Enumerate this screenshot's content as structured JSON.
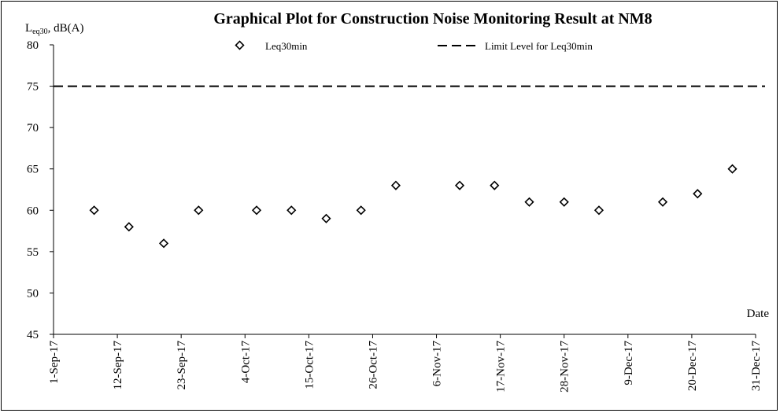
{
  "chart_data": {
    "type": "scatter",
    "title": "Graphical Plot for Construction Noise Monitoring Result at NM8",
    "ylabel_main": "L",
    "ylabel_sub": "eq30",
    "ylabel_rest": ", dB(A)",
    "xlabel": "Date",
    "ylim": [
      45,
      80
    ],
    "yticks": [
      45,
      50,
      55,
      60,
      65,
      70,
      75,
      80
    ],
    "xlim": [
      "2017-09-01",
      "2017-12-31"
    ],
    "xticks": [
      {
        "date": "2017-09-01",
        "label": "1-Sep-17"
      },
      {
        "date": "2017-09-12",
        "label": "12-Sep-17"
      },
      {
        "date": "2017-09-23",
        "label": "23-Sep-17"
      },
      {
        "date": "2017-10-04",
        "label": "4-Oct-17"
      },
      {
        "date": "2017-10-15",
        "label": "15-Oct-17"
      },
      {
        "date": "2017-10-26",
        "label": "26-Oct-17"
      },
      {
        "date": "2017-11-06",
        "label": "6-Nov-17"
      },
      {
        "date": "2017-11-17",
        "label": "17-Nov-17"
      },
      {
        "date": "2017-11-28",
        "label": "28-Nov-17"
      },
      {
        "date": "2017-12-09",
        "label": "9-Dec-17"
      },
      {
        "date": "2017-12-20",
        "label": "20-Dec-17"
      },
      {
        "date": "2017-12-31",
        "label": "31-Dec-17"
      }
    ],
    "series": [
      {
        "name": "Leq30min",
        "marker": "diamond",
        "points": [
          {
            "x": "2017-09-08",
            "y": 60
          },
          {
            "x": "2017-09-14",
            "y": 58
          },
          {
            "x": "2017-09-20",
            "y": 56
          },
          {
            "x": "2017-09-26",
            "y": 60
          },
          {
            "x": "2017-10-06",
            "y": 60
          },
          {
            "x": "2017-10-12",
            "y": 60
          },
          {
            "x": "2017-10-18",
            "y": 59
          },
          {
            "x": "2017-10-24",
            "y": 60
          },
          {
            "x": "2017-10-30",
            "y": 63
          },
          {
            "x": "2017-11-10",
            "y": 63
          },
          {
            "x": "2017-11-16",
            "y": 63
          },
          {
            "x": "2017-11-22",
            "y": 61
          },
          {
            "x": "2017-11-28",
            "y": 61
          },
          {
            "x": "2017-12-04",
            "y": 60
          },
          {
            "x": "2017-12-15",
            "y": 61
          },
          {
            "x": "2017-12-21",
            "y": 62
          },
          {
            "x": "2017-12-27",
            "y": 65
          }
        ]
      },
      {
        "name": "Limit Level for Leq30min",
        "line": "dashed",
        "y": 75
      }
    ],
    "legend_position": "top",
    "grid": false
  }
}
